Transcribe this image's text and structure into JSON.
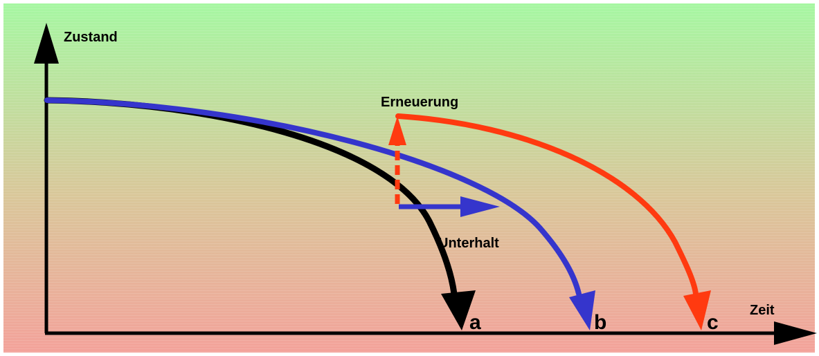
{
  "axes": {
    "y_label": "Zustand",
    "x_label": "Zeit"
  },
  "annotations": {
    "renewal": "Erneuerung",
    "maintenance": "Unterhalt"
  },
  "curves": [
    {
      "id": "a",
      "label": "a",
      "color": "#000000"
    },
    {
      "id": "b",
      "label": "b",
      "color": "#3535cc"
    },
    {
      "id": "c",
      "label": "c",
      "color": "#ff3a10"
    }
  ],
  "colors": {
    "background_top": "#a6f7a2",
    "background_middle": "#d9c79a",
    "background_bottom": "#f3a29a",
    "axis": "#000000",
    "maintenance_arrow": "#3535cc",
    "renewal_arrow": "#ff3a10"
  }
}
